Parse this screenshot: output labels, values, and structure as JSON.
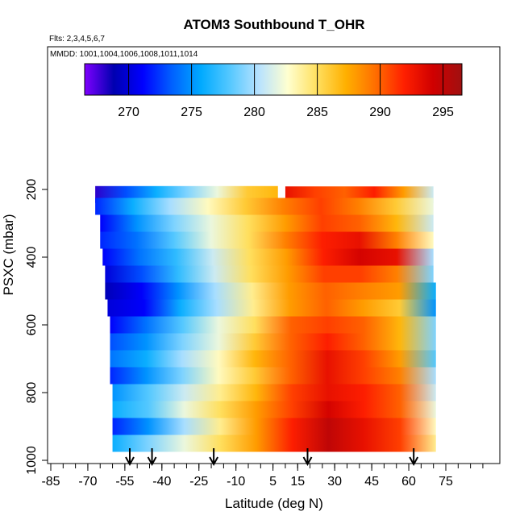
{
  "chart_data": {
    "type": "heatmap",
    "title": "ATOM3 Southbound T_OHR",
    "flights_label": "Flts: 2,3,4,5,6,7",
    "dates_label": "MMDD: 1001,1004,1006,1008,1011,1014",
    "xlabel": "Latitude (deg N)",
    "ylabel": "PSXC (mbar)",
    "xlim": [
      -85,
      90
    ],
    "ylim": [
      1000,
      60
    ],
    "x_tick_labels": [
      "-85",
      "-70",
      "-55",
      "-40",
      "-25",
      "-10",
      "5",
      "15",
      "30",
      "45",
      "60",
      "75"
    ],
    "x_tick_values": [
      -85,
      -70,
      -55,
      -40,
      -25,
      -10,
      5,
      15,
      30,
      45,
      60,
      75
    ],
    "x_minor_step": 5,
    "y_tick_labels": [
      "200",
      "400",
      "600",
      "800",
      "1000"
    ],
    "y_tick_values": [
      200,
      400,
      600,
      800,
      1000
    ],
    "colorbar": {
      "min": 266.5,
      "max": 296.5,
      "tick_labels": [
        "270",
        "275",
        "280",
        "285",
        "290",
        "295"
      ],
      "tick_values": [
        270,
        275,
        280,
        285,
        290,
        295
      ],
      "colors": [
        "#7f00ff",
        "#0000b0",
        "#0000ff",
        "#0060ff",
        "#00aaff",
        "#55c8ff",
        "#b7e2ff",
        "#ffffd0",
        "#ffe060",
        "#ffb000",
        "#ff7000",
        "#ff2000",
        "#d00000",
        "#a01010"
      ]
    },
    "layers": [
      {
        "p": 215,
        "x0": -67,
        "x1": 7,
        "temps": [
          268,
          273,
          276,
          279,
          282,
          286,
          287
        ]
      },
      {
        "p": 216,
        "x0": 10,
        "x1": 70,
        "temps": [
          293,
          291,
          290,
          292,
          288,
          281
        ]
      },
      {
        "p": 250,
        "x0": -67,
        "x1": 70,
        "temps": [
          272,
          276,
          280,
          283,
          286,
          289,
          291,
          289,
          286,
          282
        ]
      },
      {
        "p": 300,
        "x0": -65,
        "x1": 70,
        "temps": [
          271,
          275,
          279,
          282,
          285,
          288,
          291,
          290,
          287,
          281
        ]
      },
      {
        "p": 350,
        "x0": -65,
        "x1": 70,
        "temps": [
          272,
          274,
          278,
          282,
          285,
          289,
          292,
          293,
          289,
          283
        ]
      },
      {
        "p": 400,
        "x0": -64,
        "x1": 70,
        "temps": [
          271,
          274,
          277,
          281,
          285,
          288,
          292,
          294,
          293,
          280
        ]
      },
      {
        "p": 450,
        "x0": -63,
        "x1": 70,
        "temps": [
          270,
          273,
          277,
          281,
          285,
          288,
          291,
          291,
          289,
          279
        ]
      },
      {
        "p": 500,
        "x0": -63,
        "x1": 71,
        "temps": [
          269,
          271,
          275,
          280,
          284,
          288,
          290,
          289,
          288,
          276
        ]
      },
      {
        "p": 550,
        "x0": -62,
        "x1": 71,
        "temps": [
          270,
          271,
          276,
          280,
          284,
          288,
          290,
          288,
          286,
          275
        ]
      },
      {
        "p": 600,
        "x0": -61,
        "x1": 71,
        "temps": [
          271,
          274,
          278,
          282,
          285,
          290,
          291,
          290,
          287,
          279
        ]
      },
      {
        "p": 650,
        "x0": -61,
        "x1": 71,
        "temps": [
          273,
          275,
          279,
          282,
          286,
          290,
          292,
          290,
          287,
          279
        ]
      },
      {
        "p": 700,
        "x0": -61,
        "x1": 71,
        "temps": [
          274,
          276,
          280,
          283,
          287,
          290,
          293,
          291,
          288,
          278
        ]
      },
      {
        "p": 750,
        "x0": -61,
        "x1": 71,
        "temps": [
          272,
          275,
          279,
          283,
          286,
          290,
          293,
          291,
          289,
          280
        ]
      },
      {
        "p": 800,
        "x0": -60,
        "x1": 71,
        "temps": [
          275,
          278,
          281,
          284,
          287,
          291,
          293,
          292,
          290,
          281
        ]
      },
      {
        "p": 850,
        "x0": -60,
        "x1": 71,
        "temps": [
          276,
          278,
          282,
          285,
          288,
          291,
          294,
          292,
          290,
          282
        ]
      },
      {
        "p": 900,
        "x0": -60,
        "x1": 71,
        "temps": [
          272,
          275,
          280,
          284,
          288,
          292,
          295,
          293,
          291,
          283
        ]
      },
      {
        "p": 950,
        "x0": -60,
        "x1": 71,
        "temps": [
          276,
          279,
          282,
          285,
          288,
          292,
          295,
          293,
          291,
          284
        ]
      }
    ],
    "flight_arrows_lat": [
      -53,
      -44,
      -19,
      19,
      62
    ]
  }
}
